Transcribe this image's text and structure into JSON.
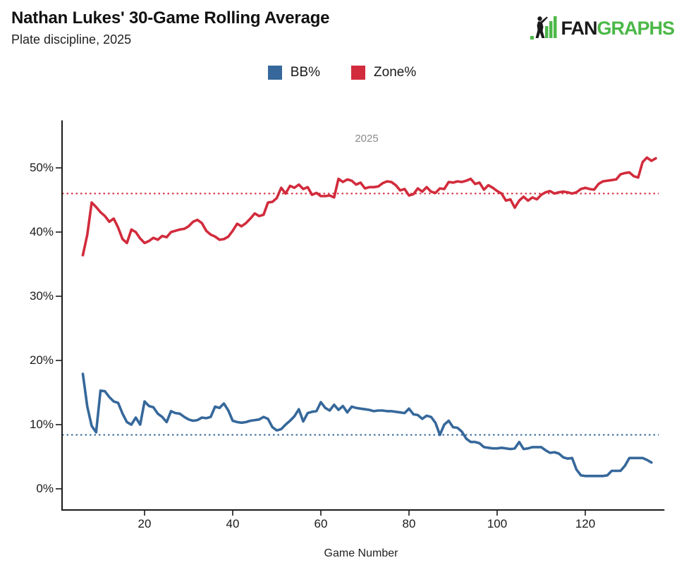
{
  "header": {
    "title": "Nathan Lukes' 30-Game Rolling Average",
    "subtitle": "Plate discipline, 2025"
  },
  "logo": {
    "text_black": "FAN",
    "text_green": "GRAPHS",
    "green": "#4CB848",
    "black": "#1A1A1A"
  },
  "legend": [
    {
      "label": "BB%",
      "color": "#36689B"
    },
    {
      "label": "Zone%",
      "color": "#D22B3C"
    }
  ],
  "chart_data": {
    "type": "line",
    "annotation": "2025",
    "xlabel": "Game Number",
    "ylabel": "",
    "x_ticks": [
      20,
      40,
      60,
      80,
      100,
      120
    ],
    "y_ticks": [
      "0%",
      "10%",
      "20%",
      "30%",
      "40%",
      "50%"
    ],
    "xlim": [
      1.3,
      137
    ],
    "ylim": [
      -3.3,
      57.4
    ],
    "grid": false,
    "legend_position": "top-center",
    "axis_color": "#1a1a1a",
    "series": [
      {
        "name": "BB%",
        "color": "#36689B",
        "avg_line": 8.4,
        "avg_line_style": "dotted",
        "start_game": 6,
        "values": [
          17.9,
          12.8,
          9.8,
          8.8,
          15.3,
          15.2,
          14.3,
          13.6,
          13.4,
          11.7,
          10.4,
          10.0,
          11.1,
          10.0,
          13.6,
          12.9,
          12.7,
          11.7,
          11.2,
          10.4,
          12.1,
          11.8,
          11.7,
          11.2,
          10.8,
          10.6,
          10.7,
          11.1,
          11.0,
          11.2,
          12.8,
          12.6,
          13.3,
          12.2,
          10.6,
          10.4,
          10.3,
          10.4,
          10.6,
          10.7,
          10.8,
          11.2,
          10.9,
          9.6,
          9.1,
          9.3,
          10.0,
          10.6,
          11.3,
          12.4,
          10.5,
          11.8,
          12.0,
          12.1,
          13.5,
          12.6,
          12.2,
          13.1,
          12.3,
          12.9,
          11.9,
          12.8,
          12.6,
          12.5,
          12.4,
          12.3,
          12.1,
          12.2,
          12.2,
          12.1,
          12.1,
          12.0,
          11.9,
          11.8,
          12.5,
          11.6,
          11.5,
          10.9,
          11.4,
          11.2,
          10.3,
          8.4,
          10.0,
          10.6,
          9.6,
          9.5,
          8.9,
          7.8,
          7.3,
          7.3,
          7.1,
          6.5,
          6.4,
          6.3,
          6.3,
          6.4,
          6.3,
          6.2,
          6.3,
          7.3,
          6.2,
          6.3,
          6.5,
          6.5,
          6.5,
          6.0,
          5.6,
          5.7,
          5.5,
          4.9,
          4.7,
          4.8,
          3.0,
          2.1,
          2.0,
          2.0,
          2.0,
          2.0,
          2.0,
          2.1,
          2.8,
          2.8,
          2.8,
          3.6,
          4.8,
          4.8,
          4.8,
          4.8,
          4.5,
          4.1
        ]
      },
      {
        "name": "Zone%",
        "color": "#D22B3C",
        "avg_line": 46.0,
        "avg_line_style": "dotted",
        "start_game": 6,
        "values": [
          36.4,
          39.6,
          44.6,
          43.9,
          43.1,
          42.5,
          41.6,
          42.1,
          40.7,
          38.9,
          38.3,
          40.4,
          40.0,
          39.0,
          38.3,
          38.6,
          39.1,
          38.8,
          39.4,
          39.2,
          40.0,
          40.2,
          40.4,
          40.5,
          40.9,
          41.6,
          41.9,
          41.4,
          40.2,
          39.6,
          39.3,
          38.8,
          38.9,
          39.3,
          40.2,
          41.3,
          40.9,
          41.4,
          42.1,
          42.9,
          42.5,
          42.7,
          44.6,
          44.7,
          45.3,
          46.9,
          46.0,
          47.2,
          46.9,
          47.4,
          46.7,
          47.0,
          45.8,
          46.1,
          45.6,
          45.6,
          45.7,
          45.4,
          48.3,
          47.8,
          48.2,
          48.0,
          47.4,
          47.7,
          46.8,
          47.0,
          47.0,
          47.1,
          47.6,
          47.9,
          47.8,
          47.3,
          46.5,
          46.7,
          45.7,
          45.9,
          46.8,
          46.3,
          47.0,
          46.3,
          46.1,
          46.8,
          46.7,
          47.8,
          47.7,
          47.9,
          47.8,
          48.0,
          48.3,
          47.5,
          47.7,
          46.6,
          47.3,
          46.9,
          46.4,
          46.0,
          44.9,
          45.1,
          43.8,
          44.9,
          45.5,
          44.9,
          45.4,
          45.1,
          45.8,
          46.2,
          46.4,
          46.0,
          46.2,
          46.3,
          46.2,
          46.0,
          46.2,
          46.7,
          46.9,
          46.7,
          46.6,
          47.5,
          47.9,
          48.0,
          48.1,
          48.2,
          49.0,
          49.2,
          49.3,
          48.7,
          48.5,
          50.9,
          51.6,
          51.1,
          51.5
        ]
      }
    ]
  }
}
